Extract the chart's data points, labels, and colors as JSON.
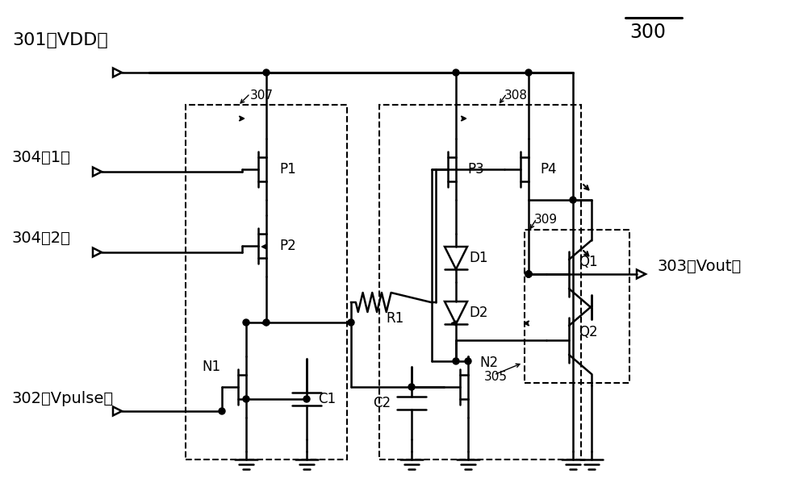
{
  "bg_color": "#ffffff",
  "line_color": "#000000",
  "figsize": [
    10.0,
    6.19
  ],
  "dpi": 100,
  "labels": {
    "vdd": "301（VDD）",
    "vpulse": "302（Vpulse）",
    "vout": "303（Vout）",
    "in1": "304（1）",
    "in2": "304（2）",
    "n300": "300",
    "n307": "307",
    "n308": "308",
    "n309": "309",
    "n305": "305",
    "P1": "P1",
    "P2": "P2",
    "P3": "P3",
    "P4": "P4",
    "N1": "N1",
    "N2": "N2",
    "D1": "D1",
    "D2": "D2",
    "R1": "R1",
    "C1": "C1",
    "C2": "C2",
    "Q1": "Q1",
    "Q2": "Q2"
  }
}
